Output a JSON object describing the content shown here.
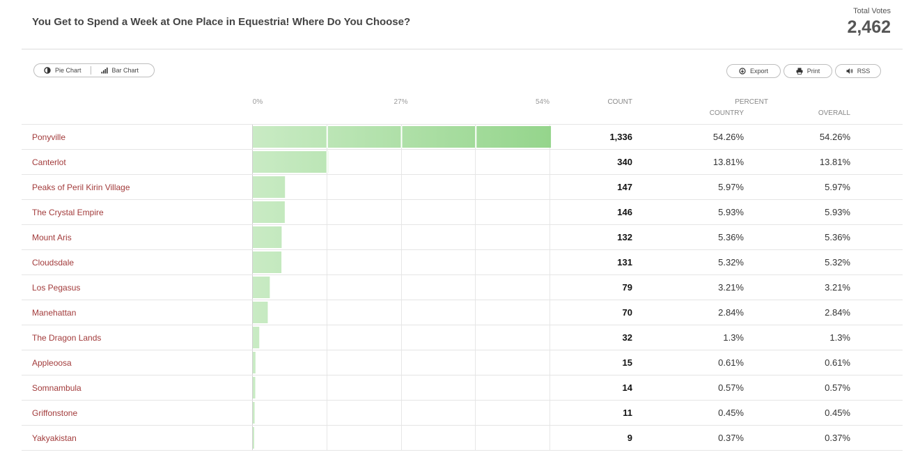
{
  "poll": {
    "title": "You Get to Spend a Week at One Place in Equestria! Where Do You Choose?",
    "total_label": "Total Votes",
    "total_value": "2,462"
  },
  "toolbar": {
    "pie_chart_label": "Pie Chart",
    "bar_chart_label": "Bar Chart",
    "export_label": "Export",
    "print_label": "Print",
    "rss_label": "RSS"
  },
  "columns": {
    "count": "COUNT",
    "percent": "PERCENT",
    "country": "COUNTRY",
    "overall": "OVERALL"
  },
  "colors": {
    "bar_light": "#c9ebc4",
    "bar_dark": "#95d58c",
    "label_text": "#a23b3b"
  },
  "chart_data": {
    "type": "bar",
    "orientation": "horizontal",
    "title": "You Get to Spend a Week at One Place in Equestria! Where Do You Choose?",
    "xlim": [
      0,
      54
    ],
    "ticks": [
      "0%",
      "27%",
      "54%"
    ],
    "tick_values": [
      0,
      27,
      54
    ],
    "grid": true,
    "rows": [
      {
        "label": "Ponyville",
        "count": "1,336",
        "value": 54.26,
        "percent_country": "54.26%",
        "percent_overall": "54.26%"
      },
      {
        "label": "Canterlot",
        "count": "340",
        "value": 13.81,
        "percent_country": "13.81%",
        "percent_overall": "13.81%"
      },
      {
        "label": "Peaks of Peril Kirin Village",
        "count": "147",
        "value": 5.97,
        "percent_country": "5.97%",
        "percent_overall": "5.97%"
      },
      {
        "label": "The Crystal Empire",
        "count": "146",
        "value": 5.93,
        "percent_country": "5.93%",
        "percent_overall": "5.93%"
      },
      {
        "label": "Mount Aris",
        "count": "132",
        "value": 5.36,
        "percent_country": "5.36%",
        "percent_overall": "5.36%"
      },
      {
        "label": "Cloudsdale",
        "count": "131",
        "value": 5.32,
        "percent_country": "5.32%",
        "percent_overall": "5.32%"
      },
      {
        "label": "Los Pegasus",
        "count": "79",
        "value": 3.21,
        "percent_country": "3.21%",
        "percent_overall": "3.21%"
      },
      {
        "label": "Manehattan",
        "count": "70",
        "value": 2.84,
        "percent_country": "2.84%",
        "percent_overall": "2.84%"
      },
      {
        "label": "The Dragon Lands",
        "count": "32",
        "value": 1.3,
        "percent_country": "1.3%",
        "percent_overall": "1.3%"
      },
      {
        "label": "Appleoosa",
        "count": "15",
        "value": 0.61,
        "percent_country": "0.61%",
        "percent_overall": "0.61%"
      },
      {
        "label": "Somnambula",
        "count": "14",
        "value": 0.57,
        "percent_country": "0.57%",
        "percent_overall": "0.57%"
      },
      {
        "label": "Griffonstone",
        "count": "11",
        "value": 0.45,
        "percent_country": "0.45%",
        "percent_overall": "0.45%"
      },
      {
        "label": "Yakyakistan",
        "count": "9",
        "value": 0.37,
        "percent_country": "0.37%",
        "percent_overall": "0.37%"
      }
    ]
  }
}
